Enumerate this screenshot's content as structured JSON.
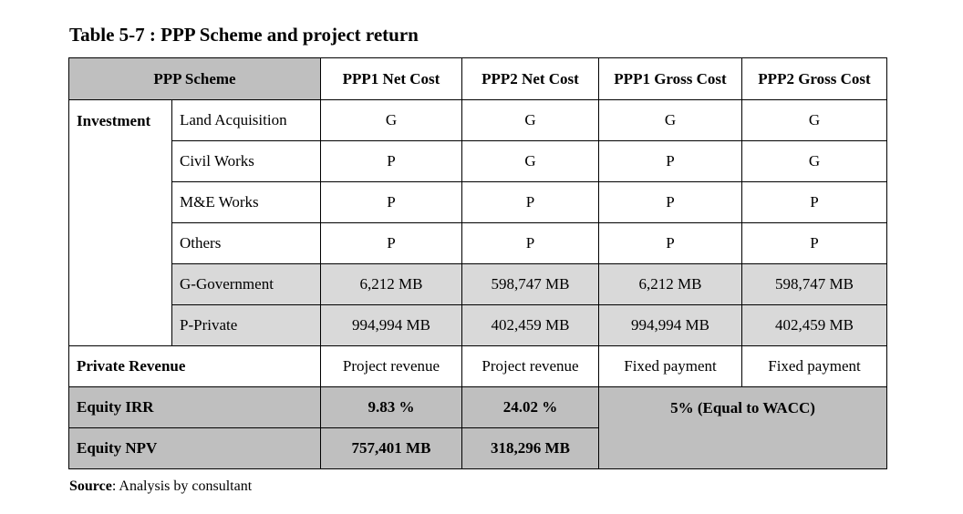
{
  "caption": "Table 5-7 : PPP Scheme and project return",
  "table": {
    "headers": [
      "PPP Scheme",
      "PPP1 Net Cost",
      "PPP2 Net Cost",
      "PPP1 Gross Cost",
      "PPP2 Gross Cost"
    ],
    "investment_label": "Investment",
    "investment_rows": [
      {
        "label": "Land Acquisition",
        "values": [
          "G",
          "G",
          "G",
          "G"
        ]
      },
      {
        "label": "Civil Works",
        "values": [
          "P",
          "G",
          "P",
          "G"
        ]
      },
      {
        "label": "M&E Works",
        "values": [
          "P",
          "P",
          "P",
          "P"
        ]
      },
      {
        "label": "Others",
        "values": [
          "P",
          "P",
          "P",
          "P"
        ]
      },
      {
        "label": "G-Government",
        "values": [
          "6,212 MB",
          "598,747 MB",
          "6,212 MB",
          "598,747 MB"
        ]
      },
      {
        "label": "P-Private",
        "values": [
          "994,994 MB",
          "402,459 MB",
          "994,994 MB",
          "402,459 MB"
        ]
      }
    ],
    "private_revenue": {
      "label": "Private Revenue",
      "values": [
        "Project revenue",
        "Project revenue",
        "Fixed payment",
        "Fixed payment"
      ]
    },
    "equity_irr": {
      "label": "Equity IRR",
      "ppp1_net": "9.83 %",
      "ppp2_net": "24.02 %",
      "gross": "5% (Equal to WACC)"
    },
    "equity_npv": {
      "label": "Equity NPV",
      "ppp1_net": "757,401 MB",
      "ppp2_net": "318,296 MB"
    }
  },
  "source": {
    "label": "Source",
    "separator": ":",
    "text": " Analysis by consultant"
  },
  "colors": {
    "header_bg": "#bfbfbf",
    "shaded_bg": "#d9d9d9",
    "border": "#000000"
  }
}
